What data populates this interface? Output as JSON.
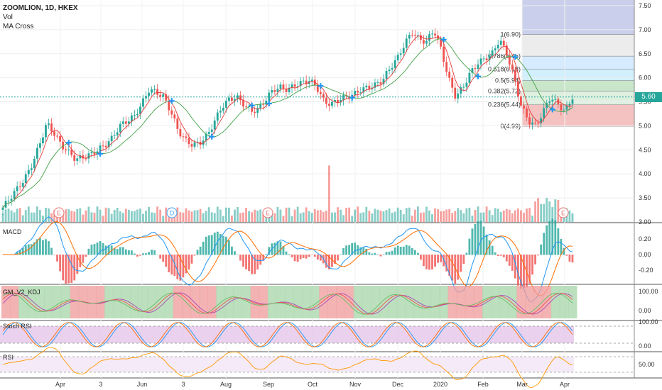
{
  "header": {
    "symbol": "ZOOMLION, 1D, HKEX",
    "line2": "Vol",
    "line3": "MA Cross"
  },
  "panels": {
    "macd": "MACD",
    "kdj": "GM_V2_KDJ",
    "stoch": "Stoch RSI",
    "rsi": "RSI"
  },
  "last_price": "5.60",
  "colors": {
    "up": "#26a69a",
    "down": "#ef5350",
    "ma_fast": "#e53935",
    "ma_slow": "#43a047",
    "macd": "#2196f3",
    "signal": "#ff6d00",
    "cross": "#2196f3",
    "fib_0": "#ef9a9a",
    "fib_236": "#c8e6c9",
    "fib_382": "#a5d6a7",
    "fib_5": "#b3e5fc",
    "fib_618": "#bbdefb",
    "fib_786": "#e0e0e0",
    "projection": "#9fa8da"
  },
  "chart_data": {
    "type": "candlestick",
    "x_labels": [
      "Apr",
      "3",
      "Jun",
      "3",
      "Aug",
      "Sep",
      "Oct",
      "Nov",
      "Dec",
      "2020",
      "Feb",
      "Mar",
      "Apr"
    ],
    "price_ticks": [
      "7.50",
      "7.00",
      "6.50",
      "6.00",
      "5.50",
      "5.00",
      "4.50",
      "4.00",
      "3.50",
      "3.00"
    ],
    "price_series": [
      3.3,
      3.5,
      3.7,
      3.9,
      4.2,
      4.6,
      5.05,
      4.85,
      4.6,
      4.45,
      4.3,
      4.35,
      4.4,
      4.5,
      4.6,
      4.75,
      5.0,
      5.1,
      5.2,
      5.45,
      5.75,
      5.7,
      5.6,
      5.3,
      4.9,
      4.7,
      4.6,
      4.65,
      4.8,
      5.1,
      5.4,
      5.55,
      5.6,
      5.45,
      5.3,
      5.35,
      5.55,
      5.75,
      5.8,
      5.75,
      5.85,
      5.9,
      5.95,
      5.8,
      5.5,
      5.45,
      5.55,
      5.6,
      5.65,
      5.75,
      5.8,
      5.85,
      5.95,
      6.2,
      6.4,
      6.7,
      6.95,
      6.8,
      6.75,
      7.0,
      6.6,
      6.0,
      5.6,
      5.8,
      6.1,
      6.3,
      6.4,
      6.5,
      6.8,
      6.5,
      6.0,
      5.4,
      5.1,
      5.0,
      5.3,
      5.6,
      5.45,
      5.3,
      5.6
    ],
    "fibonacci": [
      {
        "level": "1",
        "price": 6.9,
        "label": "1(6.90)"
      },
      {
        "level": "0.786",
        "price": 6.45,
        "label": "0.786(6.45)"
      },
      {
        "level": "0.618",
        "price": 6.18,
        "label": "0.618(6.18)"
      },
      {
        "level": "0.5",
        "price": 5.94,
        "label": "0.5(5.94)"
      },
      {
        "level": "0.382",
        "price": 5.72,
        "label": "0.382(5.72)"
      },
      {
        "level": "0.236",
        "price": 5.44,
        "label": "0.236(5.44)"
      },
      {
        "level": "0",
        "price": 4.99,
        "label": "0(4.99)"
      }
    ],
    "macd_ticks": [
      "0.20",
      "0.00",
      "-0.20"
    ],
    "kdj_ticks": [
      "100.00",
      "0.00"
    ],
    "stoch_ticks": [
      "100.00",
      "0.00"
    ],
    "rsi_ticks": [
      "50.00"
    ],
    "event_markers": [
      "E",
      "D",
      "E",
      "E"
    ]
  }
}
